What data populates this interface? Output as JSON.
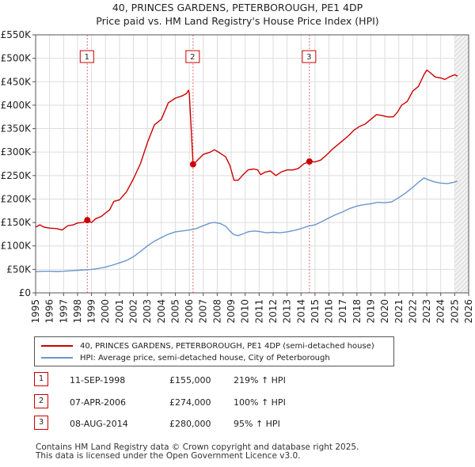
{
  "title_line1": "40, PRINCES GARDENS, PETERBOROUGH, PE1 4DP",
  "title_line2": "Price paid vs. HM Land Registry's House Price Index (HPI)",
  "chart_data": {
    "type": "line",
    "title": "40, PRINCES GARDENS, PETERBOROUGH, PE1 4DP — Price paid vs. HM Land Registry's House Price Index (HPI)",
    "xlim": [
      1995,
      2026
    ],
    "ylim": [
      0,
      550000
    ],
    "x_ticks": [
      1995,
      1996,
      1997,
      1998,
      1999,
      2000,
      2001,
      2002,
      2003,
      2004,
      2005,
      2006,
      2007,
      2008,
      2009,
      2010,
      2011,
      2012,
      2013,
      2014,
      2015,
      2016,
      2017,
      2018,
      2019,
      2020,
      2021,
      2022,
      2023,
      2024,
      2025,
      2026
    ],
    "y_ticks": [
      {
        "value": 0,
        "label": "£0"
      },
      {
        "value": 50000,
        "label": "£50K"
      },
      {
        "value": 100000,
        "label": "£100K"
      },
      {
        "value": 150000,
        "label": "£150K"
      },
      {
        "value": 200000,
        "label": "£200K"
      },
      {
        "value": 250000,
        "label": "£250K"
      },
      {
        "value": 300000,
        "label": "£300K"
      },
      {
        "value": 350000,
        "label": "£350K"
      },
      {
        "value": 400000,
        "label": "£400K"
      },
      {
        "value": 450000,
        "label": "£450K"
      },
      {
        "value": 500000,
        "label": "£500K"
      },
      {
        "value": 550000,
        "label": "£550K"
      }
    ],
    "grid": true,
    "forecast_from": 2025.0,
    "series": [
      {
        "name": "40, PRINCES GARDENS, PETERBOROUGH, PE1 4DP (semi-detached house)",
        "color": "#cc0000",
        "points": [
          [
            1995.0,
            140000
          ],
          [
            1995.3,
            145000
          ],
          [
            1995.6,
            140000
          ],
          [
            1996.0,
            138000
          ],
          [
            1996.5,
            137000
          ],
          [
            1996.9,
            134000
          ],
          [
            1997.3,
            143000
          ],
          [
            1997.7,
            145000
          ],
          [
            1998.0,
            149000
          ],
          [
            1998.4,
            150000
          ],
          [
            1998.7,
            155000
          ],
          [
            1999.0,
            150000
          ],
          [
            1999.3,
            158000
          ],
          [
            1999.7,
            163000
          ],
          [
            2000.0,
            170000
          ],
          [
            2000.3,
            177000
          ],
          [
            2000.6,
            195000
          ],
          [
            2001.0,
            198000
          ],
          [
            2001.5,
            215000
          ],
          [
            2002.0,
            243000
          ],
          [
            2002.5,
            275000
          ],
          [
            2003.0,
            320000
          ],
          [
            2003.5,
            358000
          ],
          [
            2004.0,
            370000
          ],
          [
            2004.5,
            405000
          ],
          [
            2005.0,
            415000
          ],
          [
            2005.5,
            420000
          ],
          [
            2005.8,
            425000
          ],
          [
            2005.95,
            432000
          ],
          [
            2006.0,
            425000
          ],
          [
            2006.27,
            274000
          ],
          [
            2006.5,
            280000
          ],
          [
            2007.0,
            295000
          ],
          [
            2007.5,
            300000
          ],
          [
            2007.8,
            305000
          ],
          [
            2008.2,
            298000
          ],
          [
            2008.6,
            290000
          ],
          [
            2008.9,
            272000
          ],
          [
            2009.2,
            240000
          ],
          [
            2009.5,
            240000
          ],
          [
            2009.8,
            250000
          ],
          [
            2010.2,
            262000
          ],
          [
            2010.6,
            264000
          ],
          [
            2010.9,
            262000
          ],
          [
            2011.1,
            252000
          ],
          [
            2011.4,
            257000
          ],
          [
            2011.8,
            260000
          ],
          [
            2012.2,
            250000
          ],
          [
            2012.6,
            258000
          ],
          [
            2013.0,
            262000
          ],
          [
            2013.4,
            262000
          ],
          [
            2013.8,
            265000
          ],
          [
            2014.2,
            275000
          ],
          [
            2014.6,
            280000
          ],
          [
            2015.0,
            279000
          ],
          [
            2015.4,
            283000
          ],
          [
            2015.8,
            293000
          ],
          [
            2016.2,
            305000
          ],
          [
            2016.6,
            315000
          ],
          [
            2017.0,
            325000
          ],
          [
            2017.4,
            335000
          ],
          [
            2017.8,
            347000
          ],
          [
            2018.2,
            355000
          ],
          [
            2018.6,
            360000
          ],
          [
            2019.0,
            370000
          ],
          [
            2019.4,
            380000
          ],
          [
            2019.8,
            378000
          ],
          [
            2020.2,
            375000
          ],
          [
            2020.6,
            375000
          ],
          [
            2020.9,
            385000
          ],
          [
            2021.2,
            400000
          ],
          [
            2021.6,
            408000
          ],
          [
            2022.0,
            430000
          ],
          [
            2022.4,
            440000
          ],
          [
            2022.8,
            465000
          ],
          [
            2023.0,
            475000
          ],
          [
            2023.3,
            468000
          ],
          [
            2023.6,
            460000
          ],
          [
            2024.0,
            458000
          ],
          [
            2024.3,
            455000
          ],
          [
            2024.6,
            460000
          ],
          [
            2025.0,
            465000
          ],
          [
            2025.2,
            462000
          ]
        ]
      },
      {
        "name": "HPI: Average price, semi-detached house, City of Peterborough",
        "color": "#6a96cc",
        "points": [
          [
            1995.0,
            45000
          ],
          [
            1995.5,
            46000
          ],
          [
            1996.0,
            46000
          ],
          [
            1996.5,
            45500
          ],
          [
            1997.0,
            46000
          ],
          [
            1997.5,
            47000
          ],
          [
            1998.0,
            48000
          ],
          [
            1998.5,
            49000
          ],
          [
            1999.0,
            50000
          ],
          [
            1999.5,
            52000
          ],
          [
            2000.0,
            55000
          ],
          [
            2000.5,
            59000
          ],
          [
            2001.0,
            64000
          ],
          [
            2001.5,
            69000
          ],
          [
            2002.0,
            77000
          ],
          [
            2002.5,
            88000
          ],
          [
            2003.0,
            100000
          ],
          [
            2003.5,
            110000
          ],
          [
            2004.0,
            118000
          ],
          [
            2004.5,
            125000
          ],
          [
            2005.0,
            130000
          ],
          [
            2005.5,
            132000
          ],
          [
            2006.0,
            134000
          ],
          [
            2006.5,
            137000
          ],
          [
            2007.0,
            143000
          ],
          [
            2007.5,
            149000
          ],
          [
            2007.8,
            150000
          ],
          [
            2008.2,
            148000
          ],
          [
            2008.6,
            142000
          ],
          [
            2008.9,
            132000
          ],
          [
            2009.2,
            124000
          ],
          [
            2009.5,
            122000
          ],
          [
            2009.8,
            125000
          ],
          [
            2010.2,
            130000
          ],
          [
            2010.6,
            132000
          ],
          [
            2011.0,
            131000
          ],
          [
            2011.5,
            128000
          ],
          [
            2012.0,
            129000
          ],
          [
            2012.5,
            128000
          ],
          [
            2013.0,
            130000
          ],
          [
            2013.5,
            133000
          ],
          [
            2014.0,
            137000
          ],
          [
            2014.5,
            142000
          ],
          [
            2015.0,
            145000
          ],
          [
            2015.5,
            152000
          ],
          [
            2016.0,
            160000
          ],
          [
            2016.5,
            167000
          ],
          [
            2017.0,
            173000
          ],
          [
            2017.5,
            180000
          ],
          [
            2018.0,
            185000
          ],
          [
            2018.5,
            188000
          ],
          [
            2019.0,
            190000
          ],
          [
            2019.5,
            193000
          ],
          [
            2020.0,
            192000
          ],
          [
            2020.5,
            194000
          ],
          [
            2021.0,
            203000
          ],
          [
            2021.5,
            213000
          ],
          [
            2022.0,
            225000
          ],
          [
            2022.5,
            238000
          ],
          [
            2022.8,
            245000
          ],
          [
            2023.2,
            240000
          ],
          [
            2023.6,
            236000
          ],
          [
            2024.0,
            234000
          ],
          [
            2024.5,
            233000
          ],
          [
            2025.0,
            236000
          ],
          [
            2025.2,
            238000
          ]
        ]
      }
    ],
    "sale_markers": [
      {
        "label": "1",
        "x": 1998.7,
        "y": 155000
      },
      {
        "label": "2",
        "x": 2006.27,
        "y": 274000
      },
      {
        "label": "3",
        "x": 2014.6,
        "y": 280000
      }
    ]
  },
  "legend": {
    "property_label": "40, PRINCES GARDENS, PETERBOROUGH, PE1 4DP (semi-detached house)",
    "hpi_label": "HPI: Average price, semi-detached house, City of Peterborough"
  },
  "sales": [
    {
      "num": "1",
      "date": "11-SEP-1998",
      "price": "£155,000",
      "hpi": "219% ↑ HPI"
    },
    {
      "num": "2",
      "date": "07-APR-2006",
      "price": "£274,000",
      "hpi": "100% ↑ HPI"
    },
    {
      "num": "3",
      "date": "08-AUG-2014",
      "price": "£280,000",
      "hpi": "95% ↑ HPI"
    }
  ],
  "footer": {
    "line1": "Contains HM Land Registry data © Crown copyright and database right 2025.",
    "line2": "This data is licensed under the Open Government Licence v3.0."
  }
}
